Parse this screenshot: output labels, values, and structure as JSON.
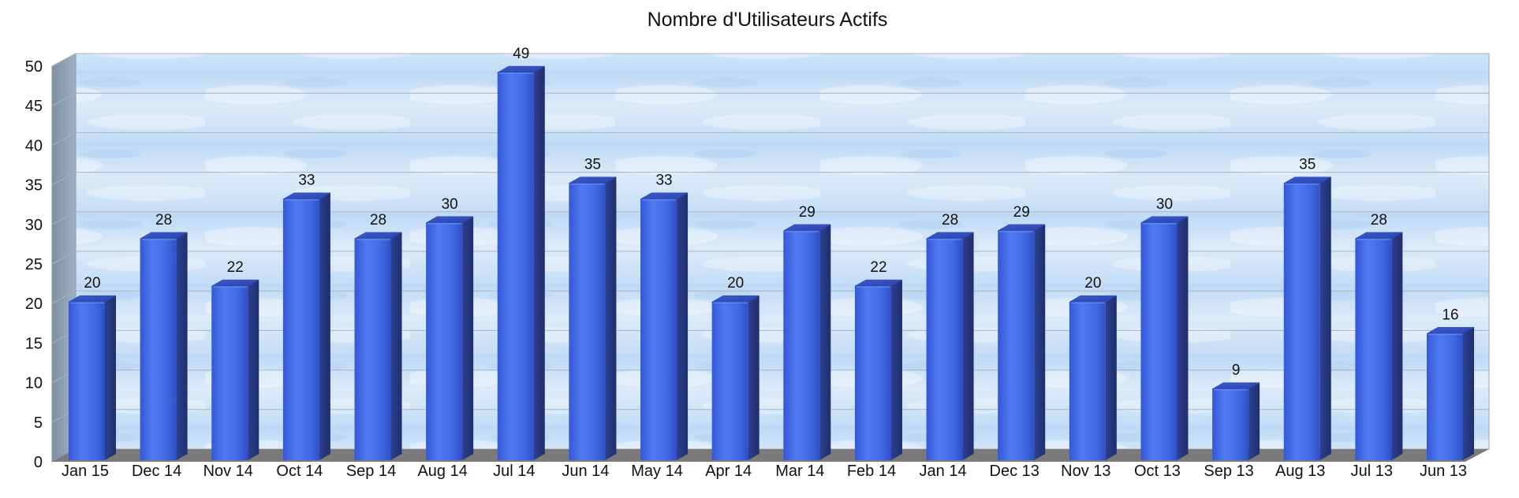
{
  "chart_data": {
    "type": "bar",
    "title": "Nombre d'Utilisateurs Actifs",
    "xlabel": "",
    "ylabel": "",
    "categories": [
      "Jan 15",
      "Dec 14",
      "Nov 14",
      "Oct 14",
      "Sep 14",
      "Aug 14",
      "Jul 14",
      "Jun 14",
      "May 14",
      "Apr 14",
      "Mar 14",
      "Feb 14",
      "Jan 14",
      "Dec 13",
      "Nov 13",
      "Oct 13",
      "Sep 13",
      "Aug 13",
      "Jul 13",
      "Jun 13"
    ],
    "values": [
      20,
      28,
      22,
      33,
      28,
      30,
      49,
      35,
      33,
      20,
      29,
      22,
      28,
      29,
      20,
      30,
      9,
      35,
      28,
      16
    ],
    "ylim": [
      0,
      50
    ],
    "yticks": [
      0,
      5,
      10,
      15,
      20,
      25,
      30,
      35,
      40,
      45,
      50
    ],
    "grid": true,
    "style": "3d-cylinder",
    "colors": {
      "bar_front": "#4169e6",
      "bar_side": "#2a3f8c",
      "bar_top": "#3b5bd1",
      "wall_sky": "#cfe3f7",
      "wall_side": "#8a9aaa",
      "floor": "#7a7a7a",
      "grid": "#a9b4c0"
    }
  }
}
